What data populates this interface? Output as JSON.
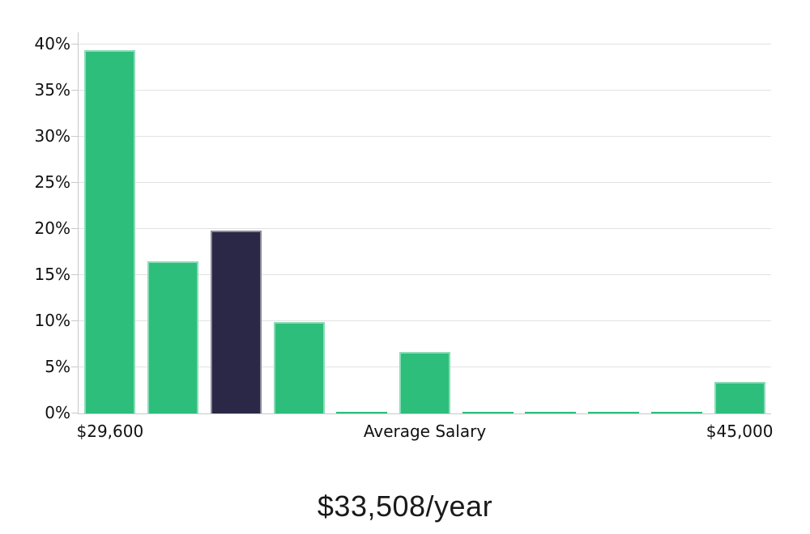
{
  "chart_data": {
    "type": "bar",
    "title": "$33,508/year",
    "xlabel": "",
    "ylabel": "",
    "ylim": [
      0,
      40
    ],
    "grid": true,
    "legend": null,
    "y_ticks": [
      {
        "value": 0,
        "label": "0%"
      },
      {
        "value": 5,
        "label": "5%"
      },
      {
        "value": 10,
        "label": "10%"
      },
      {
        "value": 15,
        "label": "15%"
      },
      {
        "value": 20,
        "label": "20%"
      },
      {
        "value": 25,
        "label": "25%"
      },
      {
        "value": 30,
        "label": "30%"
      },
      {
        "value": 35,
        "label": "35%"
      },
      {
        "value": 40,
        "label": "40%"
      }
    ],
    "x_ticks": [
      {
        "bar_index": 0,
        "label": "$29,600"
      },
      {
        "bar_index": 5,
        "label": "Average Salary"
      },
      {
        "bar_index": 10,
        "label": "$45,000"
      }
    ],
    "categories": [
      "$29,600",
      "",
      "",
      "",
      "",
      "Average Salary",
      "",
      "",
      "",
      "",
      "$45,000"
    ],
    "values": [
      39.4,
      16.5,
      19.8,
      9.9,
      0.15,
      6.7,
      0.15,
      0.15,
      0.15,
      0.15,
      3.4
    ],
    "bar_colors": [
      "green",
      "green",
      "navy",
      "green",
      "green",
      "green",
      "green",
      "green",
      "green",
      "green",
      "green"
    ],
    "colors": {
      "green": "#2dbe7c",
      "navy": "#2a2747",
      "gridline": "#e2e2e2",
      "axis": "#c9c9c9",
      "axis_text": "#111111",
      "title_text": "#1a1a1a"
    }
  }
}
